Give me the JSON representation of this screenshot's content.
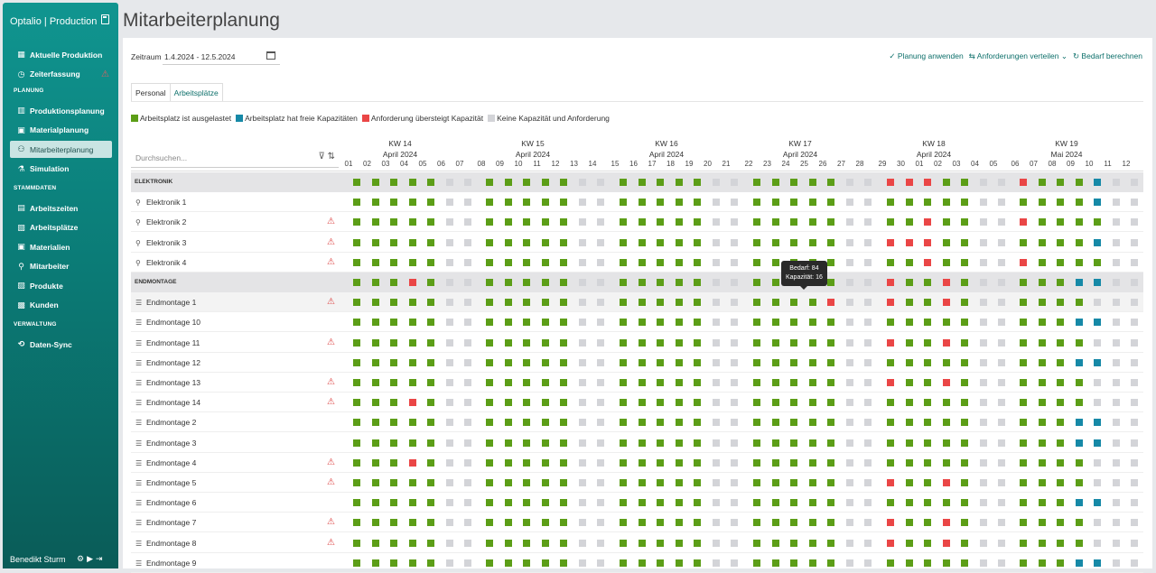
{
  "app": {
    "title": "Optalio | Production"
  },
  "sidebar": {
    "items": [
      {
        "label": "Aktuelle Produktion",
        "icon": "building-icon"
      },
      {
        "label": "Zeiterfassung",
        "icon": "clock-icon",
        "warning": true
      }
    ],
    "sections": [
      {
        "label": "PLANUNG",
        "items": [
          {
            "label": "Produktionsplanung",
            "icon": "chart-icon"
          },
          {
            "label": "Materialplanung",
            "icon": "box-icon"
          },
          {
            "label": "Mitarbeiterplanung",
            "icon": "users-icon",
            "active": true
          },
          {
            "label": "Simulation",
            "icon": "flask-icon"
          }
        ]
      },
      {
        "label": "STAMMDATEN",
        "items": [
          {
            "label": "Arbeitszeiten",
            "icon": "calendar-icon"
          },
          {
            "label": "Arbeitsplätze",
            "icon": "workstation-icon"
          },
          {
            "label": "Materialien",
            "icon": "box-icon"
          },
          {
            "label": "Mitarbeiter",
            "icon": "person-icon"
          },
          {
            "label": "Produkte",
            "icon": "product-icon"
          },
          {
            "label": "Kunden",
            "icon": "customer-icon"
          }
        ]
      },
      {
        "label": "VERWALTUNG",
        "items": [
          {
            "label": "Daten-Sync",
            "icon": "sync-icon"
          }
        ]
      }
    ],
    "user": "Benedikt Sturm"
  },
  "page": {
    "title": "Mitarbeiterplanung"
  },
  "period": {
    "label": "Zeitraum",
    "value": "1.4.2024 - 12.5.2024"
  },
  "actions": {
    "apply": "Planung anwenden",
    "distribute": "Anforderungen verteilen",
    "calculate": "Bedarf berechnen"
  },
  "tabs": [
    {
      "label": "Personal"
    },
    {
      "label": "Arbeitsplätze",
      "active": true
    }
  ],
  "legend": [
    {
      "label": "Arbeitsplatz ist ausgelastet",
      "color": "#5c9e17"
    },
    {
      "label": "Arbeitsplatz hat freie Kapazitäten",
      "color": "#1689a7"
    },
    {
      "label": "Anforderung übersteigt Kapazität",
      "color": "#ea4646"
    },
    {
      "label": "Keine Kapazität und Anforderung",
      "color": "#d3d4d8"
    }
  ],
  "search": {
    "placeholder": "Durchsuchen..."
  },
  "weeks": [
    {
      "label": "KW 14",
      "month": "April 2024"
    },
    {
      "label": "KW 15",
      "month": "April 2024"
    },
    {
      "label": "KW 16",
      "month": "April 2024"
    },
    {
      "label": "KW 17",
      "month": "April 2024"
    },
    {
      "label": "KW 18",
      "month": "April 2024"
    },
    {
      "label": "KW 19",
      "month": "Mai 2024"
    }
  ],
  "days": [
    "01",
    "02",
    "03",
    "04",
    "05",
    "06",
    "07",
    "08",
    "09",
    "10",
    "11",
    "12",
    "13",
    "14",
    "15",
    "16",
    "17",
    "18",
    "19",
    "20",
    "21",
    "22",
    "23",
    "24",
    "25",
    "26",
    "27",
    "28",
    "29",
    "30",
    "01",
    "02",
    "03",
    "04",
    "05",
    "06",
    "07",
    "08",
    "09",
    "10",
    "11",
    "12"
  ],
  "tooltip": {
    "demand": "Bedarf: 84",
    "capacity": "Kapazität: 16"
  },
  "rows": [
    {
      "label": "ELEKTRONIK",
      "group": true,
      "cells": "gggggnn gggggnn gggggnn gggggnn rrrggnn rgggbnn"
    },
    {
      "label": "Elektronik 1",
      "icon": "person",
      "cells": "gggggnn gggggnn gggggnn gggggnn gggggnn ggggbnn"
    },
    {
      "label": "Elektronik 2",
      "icon": "person",
      "warning": true,
      "cells": "gggggnn gggggnn gggggnn gggggnn ggrggnn rggggnn"
    },
    {
      "label": "Elektronik 3",
      "icon": "person",
      "warning": true,
      "cells": "gggggnn gggggnn gggggnn gggggnn rrrggnn ggggbnn"
    },
    {
      "label": "Elektronik 4",
      "icon": "person",
      "warning": true,
      "cells": "gggggnn gggggnn gggggnn gggggnn ggrggnn rggggnn"
    },
    {
      "label": "ENDMONTAGE",
      "group": true,
      "cells": "gggrgnn gggggnn gggggnn gggggnn rggrgnn gggbbnn"
    },
    {
      "label": "Endmontage 1",
      "icon": "db",
      "warning": true,
      "cells": "gggggnn gggggnn gggggnn ggggrnn rggrgnn ggggnnn"
    },
    {
      "label": "Endmontage 10",
      "icon": "db",
      "cells": "gggggnn gggggnn gggggnn gggggnn gggggnn gggbbnn"
    },
    {
      "label": "Endmontage 11",
      "icon": "db",
      "warning": true,
      "cells": "gggggnn gggggnn gggggnn gggggnn rggrgnn ggggnnn"
    },
    {
      "label": "Endmontage 12",
      "icon": "db",
      "cells": "gggggnn gggggnn gggggnn gggggnn gggggnn gggbbnn"
    },
    {
      "label": "Endmontage 13",
      "icon": "db",
      "warning": true,
      "cells": "gggggnn gggggnn gggggnn gggggnn rggrgnn ggggnnn"
    },
    {
      "label": "Endmontage 14",
      "icon": "db",
      "warning": true,
      "cells": "gggrgnn gggggnn gggggnn gggggnn gggggnn ggggnnn"
    },
    {
      "label": "Endmontage 2",
      "icon": "db",
      "cells": "gggggnn gggggnn gggggnn gggggnn gggggnn gggbbnn"
    },
    {
      "label": "Endmontage 3",
      "icon": "db",
      "cells": "gggggnn gggggnn gggggnn gggggnn gggggnn gggbbnn"
    },
    {
      "label": "Endmontage 4",
      "icon": "db",
      "warning": true,
      "cells": "gggrgnn gggggnn gggggnn gggggnn gggggnn ggggnnn"
    },
    {
      "label": "Endmontage 5",
      "icon": "db",
      "warning": true,
      "cells": "gggggnn gggggnn gggggnn gggggnn rggrgnn ggggnnn"
    },
    {
      "label": "Endmontage 6",
      "icon": "db",
      "cells": "gggggnn gggggnn gggggnn gggggnn gggggnn gggbbnn"
    },
    {
      "label": "Endmontage 7",
      "icon": "db",
      "warning": true,
      "cells": "gggggnn gggggnn gggggnn gggggnn rggrgnn ggggnnn"
    },
    {
      "label": "Endmontage 8",
      "icon": "db",
      "warning": true,
      "cells": "gggggnn gggggnn gggggnn gggggnn rggrgnn ggggnnn"
    },
    {
      "label": "Endmontage 9",
      "icon": "db",
      "cells": "gggggnn gggggnn gggggnn gggggnn gggggnn gggbbnn"
    }
  ]
}
